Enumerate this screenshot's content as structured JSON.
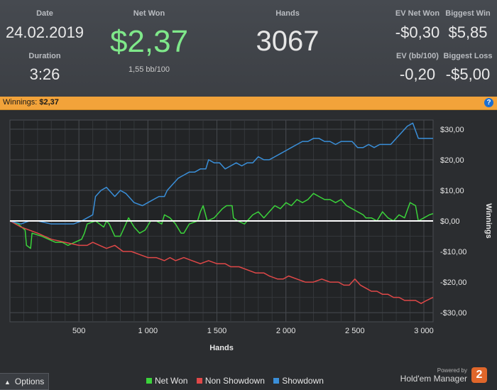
{
  "stats": {
    "date_label": "Date",
    "date_value": "24.02.2019",
    "duration_label": "Duration",
    "duration_value": "3:26",
    "netwon_label": "Net Won",
    "netwon_value": "$2,37",
    "netwon_sub": "1,55 bb/100",
    "hands_label": "Hands",
    "hands_value": "3067",
    "ev_netwon_label": "EV Net Won",
    "ev_netwon_value": "-$0,30",
    "biggest_win_label": "Biggest Win",
    "biggest_win_value": "$5,85",
    "ev_bb_label": "EV (bb/100)",
    "ev_bb_value": "-0,20",
    "biggest_loss_label": "Biggest Loss",
    "biggest_loss_value": "-$5,00"
  },
  "panel": {
    "title_prefix": "Winnings:",
    "title_value": "$2,37",
    "help_glyph": "?"
  },
  "chart_data": {
    "type": "line",
    "xlabel": "Hands",
    "ylabel": "Winnings",
    "xlim": [
      0,
      3067
    ],
    "ylim": [
      -33,
      33
    ],
    "x_ticks": [
      500,
      1000,
      1500,
      2000,
      2500,
      3000
    ],
    "x_tick_labels": [
      "500",
      "1 000",
      "1 500",
      "2 000",
      "2 500",
      "3 000"
    ],
    "y_ticks": [
      30,
      20,
      10,
      0,
      -10,
      -20,
      -30
    ],
    "y_tick_labels": [
      "$30,00",
      "$20,00",
      "$10,00",
      "$0,00",
      "-$10,00",
      "-$20,00",
      "-$30,00"
    ],
    "grid": true,
    "series": [
      {
        "name": "Net Won",
        "color": "#3bd33b",
        "points": [
          [
            0,
            0
          ],
          [
            60,
            -1
          ],
          [
            110,
            -3
          ],
          [
            120,
            -8
          ],
          [
            150,
            -9
          ],
          [
            160,
            -4
          ],
          [
            230,
            -5
          ],
          [
            280,
            -6
          ],
          [
            330,
            -7
          ],
          [
            380,
            -7
          ],
          [
            420,
            -8
          ],
          [
            470,
            -7
          ],
          [
            520,
            -6
          ],
          [
            540,
            -4
          ],
          [
            560,
            -1
          ],
          [
            620,
            0
          ],
          [
            680,
            -2
          ],
          [
            700,
            0
          ],
          [
            720,
            -1
          ],
          [
            760,
            -5
          ],
          [
            800,
            -5
          ],
          [
            830,
            -2
          ],
          [
            860,
            1
          ],
          [
            900,
            -2
          ],
          [
            940,
            -4
          ],
          [
            980,
            -3
          ],
          [
            1020,
            0
          ],
          [
            1060,
            0
          ],
          [
            1100,
            -1
          ],
          [
            1120,
            2
          ],
          [
            1160,
            1
          ],
          [
            1200,
            -1
          ],
          [
            1240,
            -4
          ],
          [
            1260,
            -4
          ],
          [
            1300,
            -1
          ],
          [
            1360,
            0
          ],
          [
            1380,
            3
          ],
          [
            1400,
            5
          ],
          [
            1430,
            0
          ],
          [
            1480,
            1
          ],
          [
            1540,
            4
          ],
          [
            1570,
            5
          ],
          [
            1610,
            5
          ],
          [
            1620,
            1
          ],
          [
            1650,
            0
          ],
          [
            1700,
            -1
          ],
          [
            1720,
            0
          ],
          [
            1760,
            2
          ],
          [
            1800,
            3
          ],
          [
            1840,
            1
          ],
          [
            1880,
            3
          ],
          [
            1920,
            5
          ],
          [
            1960,
            4
          ],
          [
            2000,
            6
          ],
          [
            2040,
            5
          ],
          [
            2080,
            7
          ],
          [
            2120,
            6
          ],
          [
            2160,
            7
          ],
          [
            2200,
            9
          ],
          [
            2240,
            8
          ],
          [
            2280,
            7
          ],
          [
            2320,
            7
          ],
          [
            2360,
            6
          ],
          [
            2400,
            7
          ],
          [
            2440,
            5
          ],
          [
            2480,
            4
          ],
          [
            2520,
            3
          ],
          [
            2560,
            2
          ],
          [
            2580,
            1
          ],
          [
            2620,
            1
          ],
          [
            2660,
            0
          ],
          [
            2700,
            3
          ],
          [
            2740,
            1
          ],
          [
            2780,
            0
          ],
          [
            2820,
            2
          ],
          [
            2860,
            1
          ],
          [
            2900,
            6
          ],
          [
            2940,
            5
          ],
          [
            2960,
            0
          ],
          [
            3000,
            1
          ],
          [
            3040,
            2
          ],
          [
            3067,
            2.4
          ]
        ]
      },
      {
        "name": "Non Showdown",
        "color": "#e04848",
        "points": [
          [
            0,
            0
          ],
          [
            80,
            -2
          ],
          [
            200,
            -4
          ],
          [
            300,
            -6
          ],
          [
            400,
            -7
          ],
          [
            500,
            -8
          ],
          [
            560,
            -8
          ],
          [
            600,
            -7
          ],
          [
            650,
            -8
          ],
          [
            700,
            -9
          ],
          [
            760,
            -8
          ],
          [
            820,
            -10
          ],
          [
            880,
            -10
          ],
          [
            940,
            -11
          ],
          [
            1000,
            -12
          ],
          [
            1060,
            -12
          ],
          [
            1120,
            -13
          ],
          [
            1160,
            -12
          ],
          [
            1200,
            -13
          ],
          [
            1260,
            -12
          ],
          [
            1320,
            -13
          ],
          [
            1380,
            -14
          ],
          [
            1440,
            -13
          ],
          [
            1500,
            -14
          ],
          [
            1560,
            -14
          ],
          [
            1600,
            -15
          ],
          [
            1660,
            -15
          ],
          [
            1720,
            -16
          ],
          [
            1780,
            -17
          ],
          [
            1840,
            -17
          ],
          [
            1880,
            -18
          ],
          [
            1940,
            -19
          ],
          [
            1980,
            -19
          ],
          [
            2020,
            -18
          ],
          [
            2080,
            -19
          ],
          [
            2140,
            -20
          ],
          [
            2200,
            -20
          ],
          [
            2260,
            -19
          ],
          [
            2320,
            -20
          ],
          [
            2380,
            -20
          ],
          [
            2420,
            -21
          ],
          [
            2460,
            -21
          ],
          [
            2500,
            -19
          ],
          [
            2540,
            -21
          ],
          [
            2580,
            -22
          ],
          [
            2620,
            -23
          ],
          [
            2660,
            -23
          ],
          [
            2700,
            -24
          ],
          [
            2740,
            -24
          ],
          [
            2780,
            -25
          ],
          [
            2820,
            -25
          ],
          [
            2860,
            -26
          ],
          [
            2900,
            -26
          ],
          [
            2940,
            -26
          ],
          [
            2980,
            -27
          ],
          [
            3020,
            -26
          ],
          [
            3067,
            -25
          ]
        ]
      },
      {
        "name": "Showdown",
        "color": "#3a8fd9",
        "points": [
          [
            0,
            0
          ],
          [
            80,
            -1
          ],
          [
            140,
            0
          ],
          [
            200,
            0
          ],
          [
            300,
            -1
          ],
          [
            400,
            -1
          ],
          [
            460,
            -1
          ],
          [
            520,
            0
          ],
          [
            560,
            1
          ],
          [
            600,
            2
          ],
          [
            620,
            8
          ],
          [
            660,
            10
          ],
          [
            700,
            11
          ],
          [
            760,
            8
          ],
          [
            800,
            10
          ],
          [
            840,
            9
          ],
          [
            880,
            7
          ],
          [
            900,
            6
          ],
          [
            960,
            5
          ],
          [
            1000,
            6
          ],
          [
            1040,
            7
          ],
          [
            1080,
            8
          ],
          [
            1120,
            8
          ],
          [
            1140,
            10
          ],
          [
            1180,
            12
          ],
          [
            1220,
            14
          ],
          [
            1260,
            15
          ],
          [
            1300,
            16
          ],
          [
            1340,
            16
          ],
          [
            1380,
            17
          ],
          [
            1420,
            17
          ],
          [
            1440,
            20
          ],
          [
            1480,
            19
          ],
          [
            1520,
            19
          ],
          [
            1560,
            17
          ],
          [
            1600,
            18
          ],
          [
            1640,
            19
          ],
          [
            1680,
            18
          ],
          [
            1720,
            19
          ],
          [
            1760,
            19
          ],
          [
            1800,
            21
          ],
          [
            1840,
            20
          ],
          [
            1880,
            20
          ],
          [
            1920,
            21
          ],
          [
            1960,
            22
          ],
          [
            2000,
            23
          ],
          [
            2040,
            24
          ],
          [
            2080,
            25
          ],
          [
            2120,
            26
          ],
          [
            2160,
            26
          ],
          [
            2200,
            27
          ],
          [
            2240,
            27
          ],
          [
            2280,
            26
          ],
          [
            2320,
            26
          ],
          [
            2360,
            25
          ],
          [
            2400,
            26
          ],
          [
            2440,
            26
          ],
          [
            2480,
            26
          ],
          [
            2520,
            24
          ],
          [
            2560,
            24
          ],
          [
            2600,
            25
          ],
          [
            2640,
            24
          ],
          [
            2680,
            25
          ],
          [
            2720,
            25
          ],
          [
            2760,
            25
          ],
          [
            2800,
            27
          ],
          [
            2840,
            29
          ],
          [
            2880,
            31
          ],
          [
            2920,
            32
          ],
          [
            2960,
            27
          ],
          [
            3000,
            27
          ],
          [
            3040,
            27
          ],
          [
            3067,
            27
          ]
        ]
      },
      {
        "name": "Zero",
        "color": "#ffffff",
        "points": [
          [
            0,
            0
          ],
          [
            3067,
            0
          ]
        ]
      }
    ],
    "legend": [
      "Net Won",
      "Non Showdown",
      "Showdown"
    ],
    "legend_colors": [
      "#3bd33b",
      "#e04848",
      "#3a8fd9"
    ]
  },
  "footer": {
    "options_label": "Options",
    "options_caret": "▲",
    "powered_by": "Powered by",
    "brand": "Hold'em Manager",
    "brand_mark": "2"
  }
}
